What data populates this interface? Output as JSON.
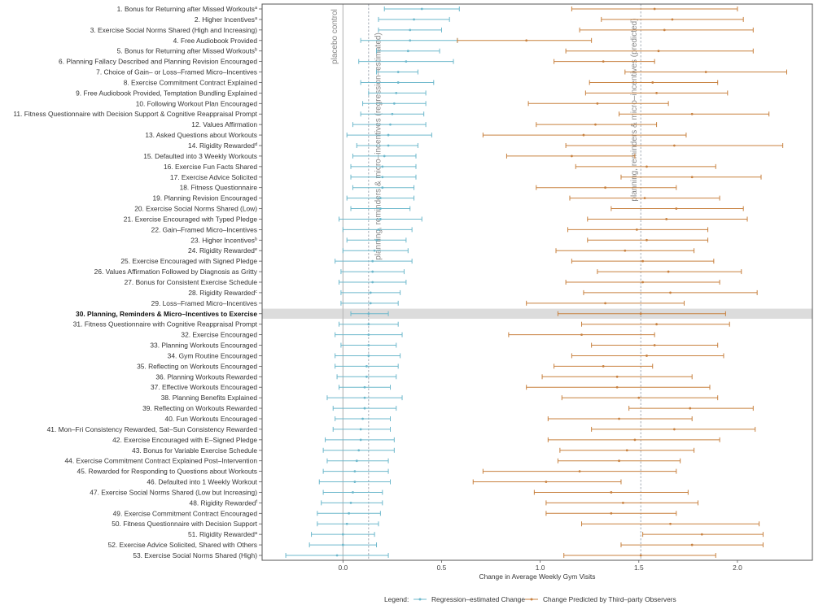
{
  "chart_data": {
    "type": "forest",
    "xlabel": "Change in Average Weekly Gym Visits",
    "xlim": [
      -0.41,
      2.38
    ],
    "xticks": [
      "0.0",
      "0.5",
      "1.0",
      "1.5",
      "2.0"
    ],
    "xtick_values": [
      0,
      0.5,
      1.0,
      1.5,
      2.0
    ],
    "grid": false,
    "highlight_row": 30,
    "colors": {
      "regression": "#6db8cc",
      "predicted": "#c8813f",
      "highlight": "#dcdcdc",
      "reference": "#999999"
    },
    "reference_lines": [
      {
        "label": "placebo control",
        "value": 0,
        "style": "solid"
      },
      {
        "label": "planning, reminders & micro–incentives (regression–estimated)",
        "value": 0.13,
        "style": "dashed"
      },
      {
        "label": "planning, reminders & micro–incentives (predicted)",
        "value": 1.51,
        "style": "dashed"
      }
    ],
    "legend": {
      "title": "Legend:",
      "placement": "bottom",
      "entries": [
        "Regression–estimated Change",
        "Change Predicted by Third–party Observers"
      ]
    },
    "series_names": [
      "Regression–estimated Change",
      "Change Predicted by Third–party Observers"
    ],
    "rows": [
      {
        "label": "1. Bonus for Returning after Missed Workouts",
        "sup": "a",
        "reg": [
          0.21,
          0.4,
          0.59
        ],
        "pred": [
          1.16,
          1.58,
          2.0
        ]
      },
      {
        "label": "2. Higher Incentives",
        "sup": "a",
        "reg": [
          0.18,
          0.36,
          0.54
        ],
        "pred": [
          1.31,
          1.67,
          2.03
        ]
      },
      {
        "label": "3. Exercise Social Norms Shared (High and Increasing)",
        "sup": "",
        "reg": [
          0.18,
          0.34,
          0.5
        ],
        "pred": [
          1.2,
          1.63,
          2.08
        ]
      },
      {
        "label": "4. Free Audiobook Provided",
        "sup": "",
        "reg": [
          0.09,
          0.34,
          0.58
        ],
        "pred": [
          0.58,
          0.93,
          1.26
        ]
      },
      {
        "label": "5. Bonus for Returning after Missed Workouts",
        "sup": "b",
        "reg": [
          0.17,
          0.33,
          0.49
        ],
        "pred": [
          1.13,
          1.6,
          2.08
        ]
      },
      {
        "label": "6. Planning Fallacy Described and Planning Revision Encouraged",
        "sup": "",
        "reg": [
          0.08,
          0.32,
          0.56
        ],
        "pred": [
          1.07,
          1.32,
          1.58
        ]
      },
      {
        "label": "7. Choice of Gain– or Loss–Framed Micro–Incentives",
        "sup": "",
        "reg": [
          0.17,
          0.28,
          0.38
        ],
        "pred": [
          1.43,
          1.84,
          2.25
        ]
      },
      {
        "label": "8. Exercise Commitment Contract Explained",
        "sup": "",
        "reg": [
          0.09,
          0.28,
          0.46
        ],
        "pred": [
          1.25,
          1.57,
          1.9
        ]
      },
      {
        "label": "9. Free Audiobook Provided, Temptation Bundling Explained",
        "sup": "",
        "reg": [
          0.13,
          0.27,
          0.42
        ],
        "pred": [
          1.23,
          1.59,
          1.95
        ]
      },
      {
        "label": "10. Following Workout Plan Encouraged",
        "sup": "",
        "reg": [
          0.1,
          0.26,
          0.42
        ],
        "pred": [
          0.94,
          1.29,
          1.65
        ]
      },
      {
        "label": "11. Fitness Questionnaire with Decision Support & Cognitive Reappraisal Prompt",
        "sup": "",
        "reg": [
          0.09,
          0.25,
          0.41
        ],
        "pred": [
          1.4,
          1.77,
          2.16
        ]
      },
      {
        "label": "12. Values Affirmation",
        "sup": "",
        "reg": [
          0.05,
          0.24,
          0.42
        ],
        "pred": [
          0.98,
          1.28,
          1.59
        ]
      },
      {
        "label": "13. Asked Questions about Workouts",
        "sup": "",
        "reg": [
          0.02,
          0.23,
          0.45
        ],
        "pred": [
          0.71,
          1.22,
          1.74
        ]
      },
      {
        "label": "14. Rigidity Rewarded",
        "sup": "d",
        "reg": [
          0.07,
          0.23,
          0.38
        ],
        "pred": [
          1.13,
          1.68,
          2.23
        ]
      },
      {
        "label": "15. Defaulted into 3 Weekly Workouts",
        "sup": "",
        "reg": [
          0.05,
          0.21,
          0.37
        ],
        "pred": [
          0.83,
          1.16,
          1.48
        ]
      },
      {
        "label": "16. Exercise Fun Facts Shared",
        "sup": "",
        "reg": [
          0.04,
          0.2,
          0.37
        ],
        "pred": [
          1.18,
          1.54,
          1.89
        ]
      },
      {
        "label": "17. Exercise Advice Solicited",
        "sup": "",
        "reg": [
          0.04,
          0.2,
          0.37
        ],
        "pred": [
          1.41,
          1.77,
          2.12
        ]
      },
      {
        "label": "18. Fitness Questionnaire",
        "sup": "",
        "reg": [
          0.05,
          0.2,
          0.36
        ],
        "pred": [
          0.98,
          1.33,
          1.69
        ]
      },
      {
        "label": "19. Planning Revision Encouraged",
        "sup": "",
        "reg": [
          0.02,
          0.19,
          0.36
        ],
        "pred": [
          1.15,
          1.53,
          1.91
        ]
      },
      {
        "label": "20. Exercise Social Norms Shared (Low)",
        "sup": "",
        "reg": [
          0.04,
          0.19,
          0.34
        ],
        "pred": [
          1.36,
          1.69,
          2.03
        ]
      },
      {
        "label": "21. Exercise Encouraged with Typed Pledge",
        "sup": "",
        "reg": [
          -0.02,
          0.19,
          0.4
        ],
        "pred": [
          1.24,
          1.64,
          2.05
        ]
      },
      {
        "label": "22. Gain–Framed Micro–Incentives",
        "sup": "",
        "reg": [
          0.0,
          0.18,
          0.35
        ],
        "pred": [
          1.14,
          1.49,
          1.85
        ]
      },
      {
        "label": "23. Higher Incentives",
        "sup": "b",
        "reg": [
          0.02,
          0.17,
          0.32
        ],
        "pred": [
          1.24,
          1.54,
          1.85
        ]
      },
      {
        "label": "24. Rigidity Rewarded",
        "sup": "e",
        "reg": [
          0.0,
          0.16,
          0.33
        ],
        "pred": [
          1.08,
          1.43,
          1.78
        ]
      },
      {
        "label": "25. Exercise Encouraged with Signed Pledge",
        "sup": "",
        "reg": [
          -0.04,
          0.15,
          0.35
        ],
        "pred": [
          1.16,
          1.52,
          1.88
        ]
      },
      {
        "label": "26. Values Affirmation Followed by Diagnosis as Gritty",
        "sup": "",
        "reg": [
          -0.01,
          0.15,
          0.31
        ],
        "pred": [
          1.29,
          1.65,
          2.02
        ]
      },
      {
        "label": "27. Bonus for Consistent Exercise Schedule",
        "sup": "",
        "reg": [
          -0.02,
          0.15,
          0.32
        ],
        "pred": [
          1.13,
          1.52,
          1.91
        ]
      },
      {
        "label": "28. Rigidity Rewarded",
        "sup": "c",
        "reg": [
          -0.01,
          0.14,
          0.29
        ],
        "pred": [
          1.22,
          1.66,
          2.1
        ]
      },
      {
        "label": "29. Loss–Framed Micro–Incentives",
        "sup": "",
        "reg": [
          -0.01,
          0.14,
          0.28
        ],
        "pred": [
          0.93,
          1.33,
          1.73
        ]
      },
      {
        "label": "30. Planning, Reminders & Micro–Incentives to Exercise",
        "sup": "",
        "reg": [
          0.04,
          0.13,
          0.23
        ],
        "pred": [
          1.09,
          1.51,
          1.94
        ]
      },
      {
        "label": "31. Fitness Questionnaire with Cognitive Reappraisal Prompt",
        "sup": "",
        "reg": [
          -0.02,
          0.13,
          0.28
        ],
        "pred": [
          1.21,
          1.59,
          1.96
        ]
      },
      {
        "label": "32. Exercise Encouraged",
        "sup": "",
        "reg": [
          -0.04,
          0.13,
          0.3
        ],
        "pred": [
          0.84,
          1.21,
          1.58
        ]
      },
      {
        "label": "33. Planning Workouts Encouraged",
        "sup": "",
        "reg": [
          -0.01,
          0.13,
          0.27
        ],
        "pred": [
          1.26,
          1.58,
          1.9
        ]
      },
      {
        "label": "34. Gym Routine Encouraged",
        "sup": "",
        "reg": [
          -0.04,
          0.13,
          0.29
        ],
        "pred": [
          1.16,
          1.54,
          1.93
        ]
      },
      {
        "label": "35. Reflecting on Workouts Encouraged",
        "sup": "",
        "reg": [
          -0.04,
          0.12,
          0.28
        ],
        "pred": [
          1.07,
          1.32,
          1.57
        ]
      },
      {
        "label": "36. Planning Workouts Rewarded",
        "sup": "",
        "reg": [
          -0.03,
          0.12,
          0.27
        ],
        "pred": [
          1.01,
          1.39,
          1.77
        ]
      },
      {
        "label": "37. Effective Workouts Encouraged",
        "sup": "",
        "reg": [
          -0.02,
          0.11,
          0.24
        ],
        "pred": [
          0.93,
          1.39,
          1.86
        ]
      },
      {
        "label": "38. Planning Benefits Explained",
        "sup": "",
        "reg": [
          -0.08,
          0.11,
          0.3
        ],
        "pred": [
          1.11,
          1.5,
          1.9
        ]
      },
      {
        "label": "39. Reflecting on Workouts Rewarded",
        "sup": "",
        "reg": [
          -0.05,
          0.11,
          0.27
        ],
        "pred": [
          1.45,
          1.76,
          2.08
        ]
      },
      {
        "label": "40. Fun Workouts Encouraged",
        "sup": "",
        "reg": [
          -0.04,
          0.1,
          0.24
        ],
        "pred": [
          1.04,
          1.4,
          1.77
        ]
      },
      {
        "label": "41. Mon–Fri Consistency Rewarded, Sat–Sun Consistency Rewarded",
        "sup": "",
        "reg": [
          -0.05,
          0.09,
          0.24
        ],
        "pred": [
          1.26,
          1.68,
          2.09
        ]
      },
      {
        "label": "42. Exercise Encouraged with E–Signed Pledge",
        "sup": "",
        "reg": [
          -0.09,
          0.09,
          0.26
        ],
        "pred": [
          1.04,
          1.48,
          1.91
        ]
      },
      {
        "label": "43. Bonus for Variable Exercise Schedule",
        "sup": "",
        "reg": [
          -0.1,
          0.08,
          0.26
        ],
        "pred": [
          1.1,
          1.44,
          1.78
        ]
      },
      {
        "label": "44. Exercise Commitment Contract Explained Post–Intervention",
        "sup": "",
        "reg": [
          -0.08,
          0.07,
          0.23
        ],
        "pred": [
          1.09,
          1.4,
          1.71
        ]
      },
      {
        "label": "45. Rewarded for Responding to Questions about Workouts",
        "sup": "",
        "reg": [
          -0.1,
          0.06,
          0.23
        ],
        "pred": [
          0.71,
          1.2,
          1.69
        ]
      },
      {
        "label": "46. Defaulted into 1 Weekly Workout",
        "sup": "",
        "reg": [
          -0.12,
          0.06,
          0.24
        ],
        "pred": [
          0.66,
          1.03,
          1.41
        ]
      },
      {
        "label": "47. Exercise Social Norms Shared (Low but Increasing)",
        "sup": "",
        "reg": [
          -0.1,
          0.05,
          0.2
        ],
        "pred": [
          0.97,
          1.36,
          1.75
        ]
      },
      {
        "label": "48. Rigidity Rewarded",
        "sup": "f",
        "reg": [
          -0.11,
          0.04,
          0.2
        ],
        "pred": [
          1.03,
          1.42,
          1.8
        ]
      },
      {
        "label": "49. Exercise Commitment Contract Encouraged",
        "sup": "",
        "reg": [
          -0.13,
          0.03,
          0.19
        ],
        "pred": [
          1.03,
          1.36,
          1.69
        ]
      },
      {
        "label": "50. Fitness Questionnaire with Decision Support",
        "sup": "",
        "reg": [
          -0.13,
          0.02,
          0.18
        ],
        "pred": [
          1.21,
          1.66,
          2.11
        ]
      },
      {
        "label": "51. Rigidity Rewarded",
        "sup": "a",
        "reg": [
          -0.16,
          0.0,
          0.16
        ],
        "pred": [
          1.52,
          1.82,
          2.13
        ]
      },
      {
        "label": "52. Exercise Advice Solicited, Shared with Others",
        "sup": "",
        "reg": [
          -0.17,
          0.0,
          0.17
        ],
        "pred": [
          1.41,
          1.77,
          2.13
        ]
      },
      {
        "label": "53. Exercise Social Norms Shared (High)",
        "sup": "",
        "reg": [
          -0.29,
          -0.03,
          0.23
        ],
        "pred": [
          1.12,
          1.51,
          1.89
        ]
      }
    ]
  }
}
